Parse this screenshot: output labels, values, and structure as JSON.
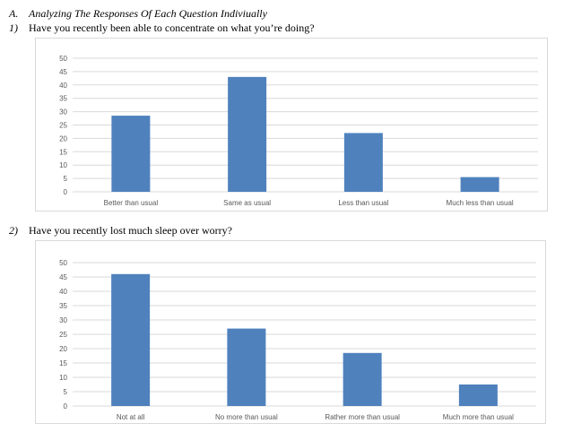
{
  "heading": {
    "marker": "A.",
    "text": "Analyzing The Responses Of Each Question Indiviually"
  },
  "questions": [
    {
      "marker": "1)",
      "text": "Have you recently been able to concentrate on what you’re doing?"
    },
    {
      "marker": "2)",
      "text": "Have you recently lost much sleep over worry?"
    }
  ],
  "colors": {
    "bar": "#4f81bd",
    "grid": "#d9d9d9",
    "axis_text": "#595959"
  },
  "chart_data": [
    {
      "type": "bar",
      "title": "",
      "xlabel": "",
      "ylabel": "",
      "categories": [
        "Better than usual",
        "Same as usual",
        "Less than usual",
        "Much less than usual"
      ],
      "values": [
        28.5,
        43,
        22,
        5.5
      ],
      "ylim": [
        0,
        50
      ],
      "yticks": [
        0,
        5,
        10,
        15,
        20,
        25,
        30,
        35,
        40,
        45,
        50
      ],
      "grid": true,
      "legend": "none"
    },
    {
      "type": "bar",
      "title": "",
      "xlabel": "",
      "ylabel": "",
      "categories": [
        "Not at all",
        "No more than usual",
        "Rather more than usual",
        "Much more than usual"
      ],
      "values": [
        46,
        27,
        18.5,
        7.5
      ],
      "ylim": [
        0,
        50
      ],
      "yticks": [
        0,
        5,
        10,
        15,
        20,
        25,
        30,
        35,
        40,
        45,
        50
      ],
      "grid": true,
      "legend": "none"
    }
  ]
}
